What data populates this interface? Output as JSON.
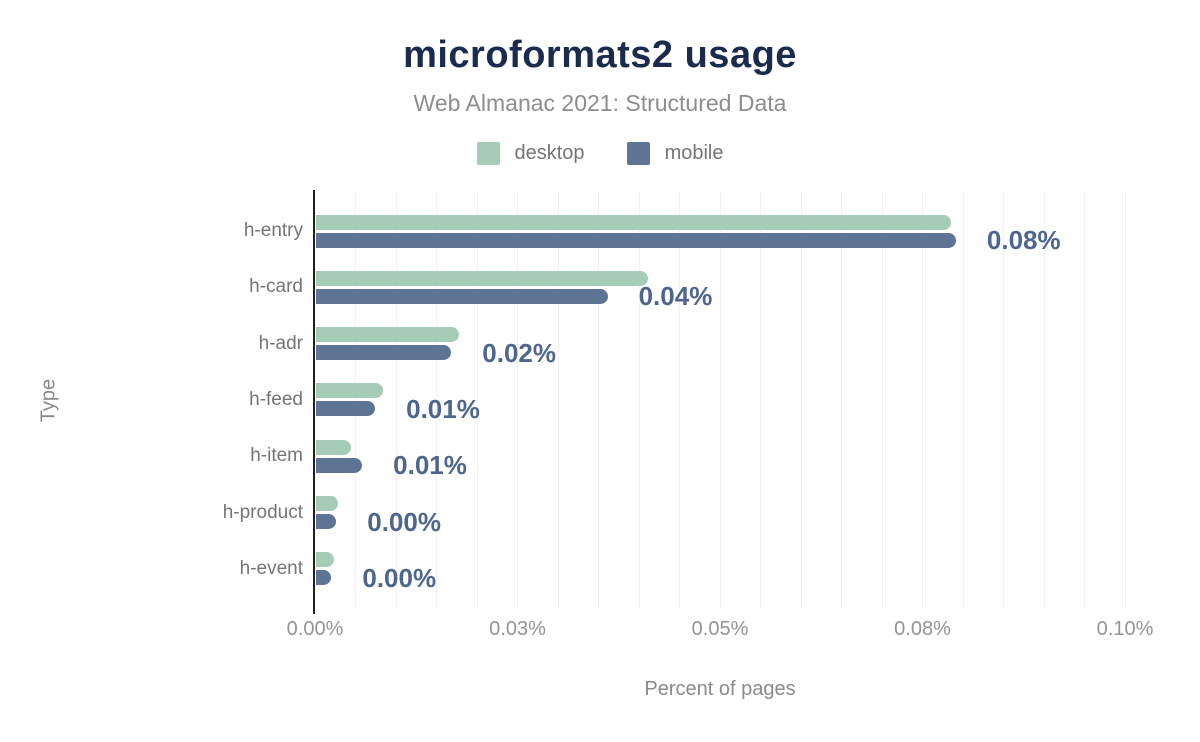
{
  "chart": {
    "title": "microformats2 usage",
    "subtitle": "Web Almanac 2021: Structured Data",
    "x_axis_title": "Percent of pages",
    "y_axis_title": "Type"
  },
  "legend": {
    "items": [
      {
        "label": "desktop",
        "color": "#a6cbb7"
      },
      {
        "label": "mobile",
        "color": "#5e7494"
      }
    ]
  },
  "chart_data": {
    "type": "bar",
    "orientation": "horizontal",
    "title": "microformats2 usage",
    "subtitle": "Web Almanac 2021: Structured Data",
    "xlabel": "Percent of pages",
    "ylabel": "Type",
    "legend_position": "top",
    "grid": true,
    "gridline_step": 0.005,
    "xlim": [
      0,
      0.1
    ],
    "categories": [
      "h-entry",
      "h-card",
      "h-adr",
      "h-feed",
      "h-item",
      "h-product",
      "h-event"
    ],
    "series": [
      {
        "name": "desktop",
        "color": "#a6cbb7",
        "values": [
          0.0784,
          0.041,
          0.0177,
          0.0083,
          0.0043,
          0.0027,
          0.0022
        ]
      },
      {
        "name": "mobile",
        "color": "#5e7494",
        "values": [
          0.079,
          0.036,
          0.0167,
          0.0073,
          0.0057,
          0.0025,
          0.0019
        ]
      }
    ],
    "bar_labels": [
      "0.08%",
      "0.04%",
      "0.02%",
      "0.01%",
      "0.01%",
      "0.00%",
      "0.00%"
    ],
    "x_ticks": [
      {
        "value": 0.0,
        "label": "0.00%"
      },
      {
        "value": 0.025,
        "label": "0.03%"
      },
      {
        "value": 0.05,
        "label": "0.05%"
      },
      {
        "value": 0.075,
        "label": "0.08%"
      },
      {
        "value": 0.1,
        "label": "0.10%"
      }
    ]
  },
  "colors": {
    "title": "#1a2b4e",
    "subtitle": "#8d8d8d",
    "category_label": "#757575",
    "value_label": "#4e668e",
    "tick_label": "#949494",
    "axis_line": "#202020",
    "gridline": "#f1f1f4",
    "desktop_bar": "#a6cbb7",
    "mobile_bar": "#5e7494"
  }
}
